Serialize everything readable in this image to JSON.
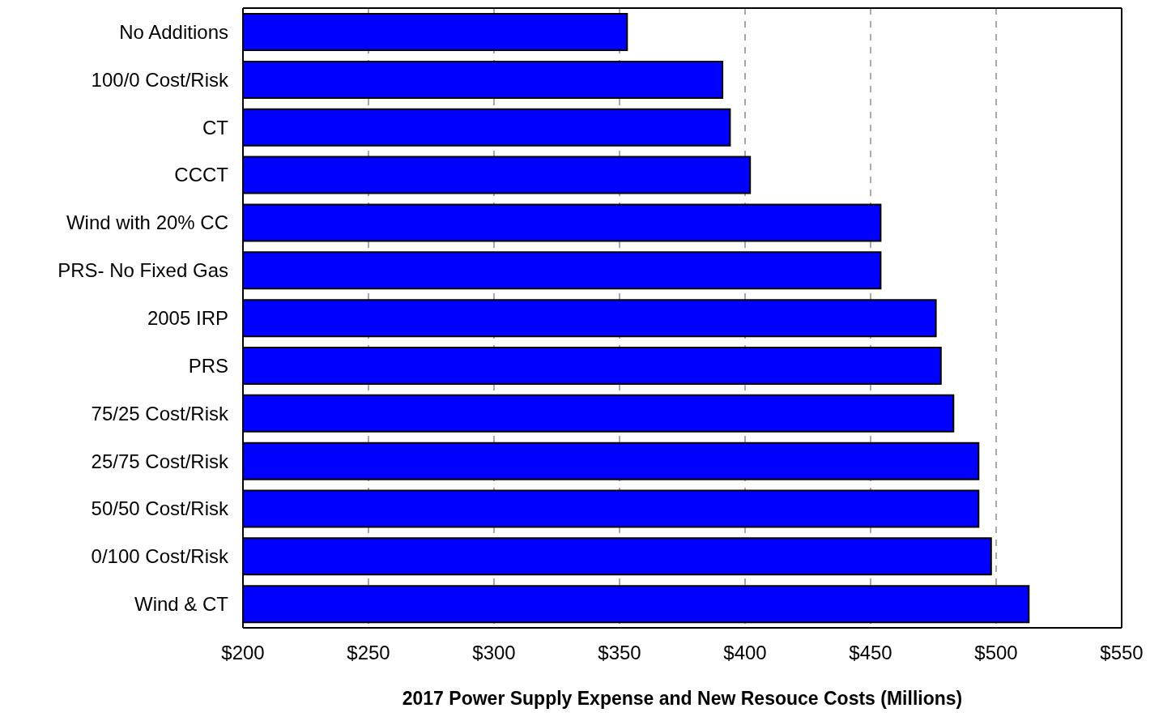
{
  "chart_data": {
    "type": "bar",
    "orientation": "horizontal",
    "xlabel": "2017 Power Supply Expense and New Resouce Costs (Millions)",
    "categories": [
      "No Additions",
      "100/0 Cost/Risk",
      "CT",
      "CCCT",
      "Wind with 20% CC",
      "PRS- No Fixed Gas",
      "2005 IRP",
      "PRS",
      "75/25 Cost/Risk",
      "25/75 Cost/Risk",
      "50/50 Cost/Risk",
      "0/100 Cost/Risk",
      "Wind & CT"
    ],
    "values": [
      353,
      391,
      394,
      402,
      454,
      454,
      476,
      478,
      483,
      493,
      493,
      498,
      513
    ],
    "color": "#0000ff",
    "xlim": [
      200,
      550
    ],
    "xticks": [
      {
        "value": 200,
        "label": "$200"
      },
      {
        "value": 250,
        "label": "$250"
      },
      {
        "value": 300,
        "label": "$300"
      },
      {
        "value": 350,
        "label": "$350"
      },
      {
        "value": 400,
        "label": "$400"
      },
      {
        "value": 450,
        "label": "$450"
      },
      {
        "value": 500,
        "label": "$500"
      },
      {
        "value": 550,
        "label": "$550"
      }
    ],
    "grid": "x",
    "legend": false
  }
}
